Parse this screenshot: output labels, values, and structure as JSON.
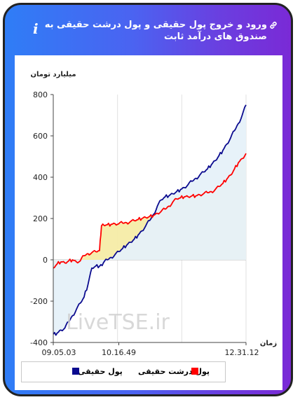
{
  "header": {
    "title": "ورود و خروج پول حقیقی و پول درشت حقیقی به صندوق های درآمد ثابت",
    "link_icon": "link-icon",
    "info_icon": "i"
  },
  "chart_data": {
    "type": "line",
    "ylabel": "میلیارد تومان",
    "xlabel": "زمان",
    "ylim": [
      -400,
      800
    ],
    "y_ticks": [
      "800",
      "600",
      "400",
      "200",
      "0",
      "-200",
      "-400"
    ],
    "x_tick_labels": [
      "09.05.03",
      "10.16.49",
      "12.31.12"
    ],
    "grid": "vertical",
    "watermark": "LiveTSE.ir",
    "series": [
      {
        "name": "پول حقیقی",
        "color": "#0b0b8f",
        "fill": "#e6f1f9",
        "x": [
          0,
          2,
          4,
          6,
          8,
          10,
          12,
          14,
          16,
          18,
          20,
          22,
          24,
          25,
          26,
          28,
          30,
          32,
          34,
          36,
          38,
          40,
          42,
          44,
          46,
          48,
          50,
          52,
          54,
          56,
          58,
          60,
          62,
          64,
          66,
          68,
          70,
          72,
          74,
          76,
          78,
          80,
          82,
          84,
          86,
          88,
          90,
          92,
          94,
          96,
          98,
          100
        ],
        "y": [
          -360,
          -355,
          -340,
          -330,
          -300,
          -270,
          -240,
          -210,
          -180,
          -120,
          -40,
          -30,
          -30,
          -25,
          -15,
          0,
          12,
          25,
          40,
          55,
          70,
          85,
          100,
          120,
          140,
          165,
          190,
          220,
          260,
          290,
          305,
          310,
          320,
          330,
          340,
          350,
          365,
          380,
          395,
          410,
          425,
          440,
          460,
          480,
          505,
          530,
          560,
          590,
          625,
          660,
          700,
          750
        ]
      },
      {
        "name": "پول درشت حقیقی",
        "color": "#ff0000",
        "fill": "#f5eca6",
        "x": [
          0,
          2,
          4,
          6,
          8,
          10,
          12,
          14,
          16,
          18,
          20,
          22,
          24,
          25,
          26,
          28,
          30,
          32,
          34,
          36,
          38,
          40,
          42,
          44,
          46,
          48,
          50,
          52,
          54,
          56,
          58,
          60,
          62,
          64,
          66,
          68,
          70,
          72,
          74,
          76,
          78,
          80,
          82,
          84,
          86,
          88,
          90,
          92,
          94,
          96,
          98,
          100
        ],
        "y": [
          -40,
          -20,
          -10,
          -15,
          -5,
          0,
          -10,
          -5,
          20,
          30,
          35,
          40,
          45,
          165,
          170,
          170,
          172,
          175,
          175,
          178,
          180,
          185,
          190,
          195,
          200,
          205,
          210,
          215,
          225,
          235,
          245,
          260,
          280,
          295,
          300,
          305,
          305,
          310,
          310,
          315,
          320,
          325,
          330,
          340,
          355,
          370,
          390,
          410,
          440,
          470,
          490,
          515
        ]
      }
    ]
  }
}
